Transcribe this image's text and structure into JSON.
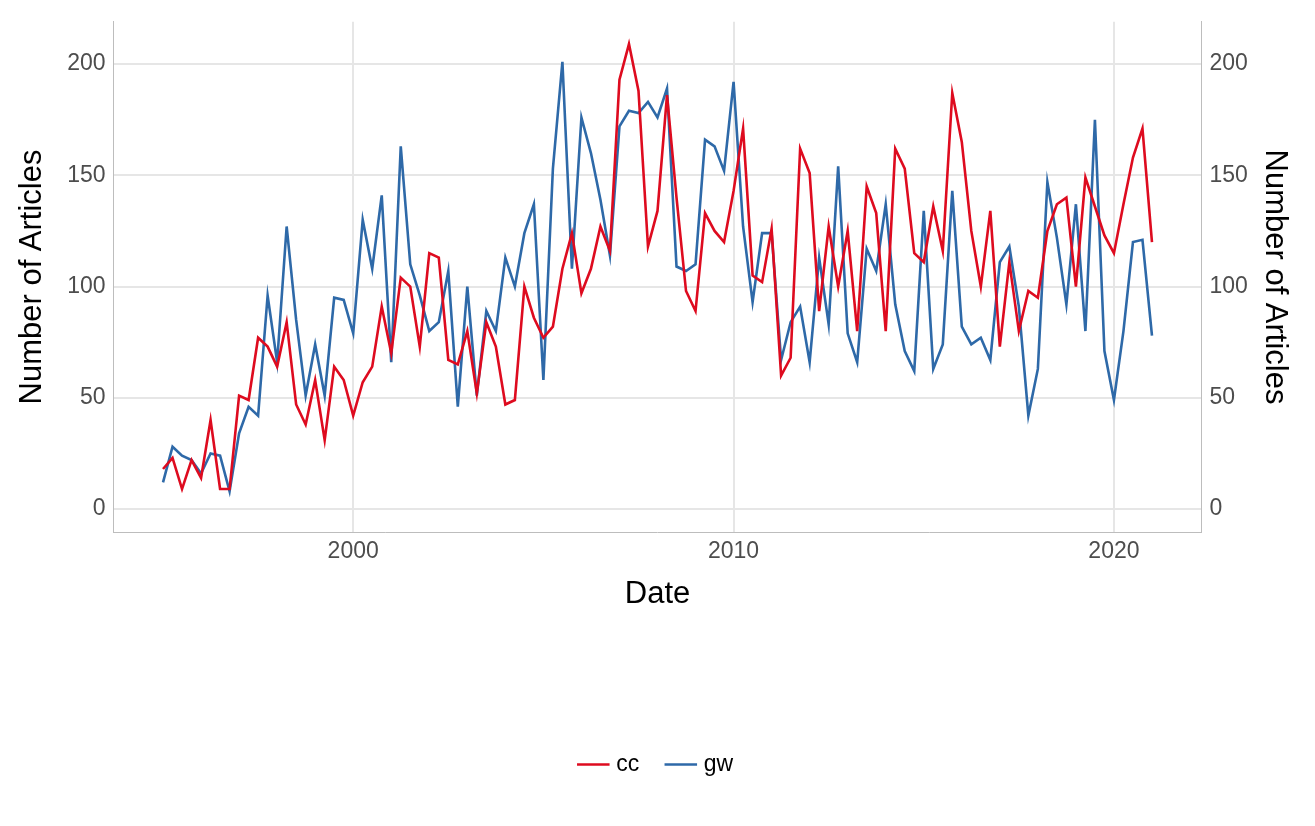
{
  "chart_data": {
    "type": "line",
    "x_label": "Date",
    "y_label": "Number of Articles",
    "y2_label": "Number of Articles",
    "x": [
      1995,
      1995.25,
      1995.5,
      1995.75,
      1996,
      1996.25,
      1996.5,
      1996.75,
      1997,
      1997.25,
      1997.5,
      1997.75,
      1998,
      1998.25,
      1998.5,
      1998.75,
      1999,
      1999.25,
      1999.5,
      1999.75,
      2000,
      2000.25,
      2000.5,
      2000.75,
      2001,
      2001.25,
      2001.5,
      2001.75,
      2002,
      2002.25,
      2002.5,
      2002.75,
      2003,
      2003.25,
      2003.5,
      2003.75,
      2004,
      2004.25,
      2004.5,
      2004.75,
      2005,
      2005.25,
      2005.5,
      2005.75,
      2006,
      2006.25,
      2006.5,
      2006.75,
      2007,
      2007.25,
      2007.5,
      2007.75,
      2008,
      2008.25,
      2008.5,
      2008.75,
      2009,
      2009.25,
      2009.5,
      2009.75,
      2010,
      2010.25,
      2010.5,
      2010.75,
      2011,
      2011.25,
      2011.5,
      2011.75,
      2012,
      2012.25,
      2012.5,
      2012.75,
      2013,
      2013.25,
      2013.5,
      2013.75,
      2014,
      2014.25,
      2014.5,
      2014.75,
      2015,
      2015.25,
      2015.5,
      2015.75,
      2016,
      2016.25,
      2016.5,
      2016.75,
      2017,
      2017.25,
      2017.5,
      2017.75,
      2018,
      2018.25,
      2018.5,
      2018.75,
      2019,
      2019.25,
      2019.5,
      2019.75,
      2020,
      2020.25,
      2020.5,
      2020.75,
      2021
    ],
    "series": [
      {
        "name": "cc",
        "color": "#DE0B1F",
        "axis": "y",
        "values": [
          18,
          23,
          9,
          22,
          14,
          40,
          9,
          9,
          51,
          49,
          77,
          73,
          64,
          84,
          47,
          38,
          58,
          31,
          64,
          58,
          42,
          57,
          64,
          91,
          70,
          104,
          100,
          73,
          115,
          113,
          67,
          65,
          80,
          52,
          84,
          73,
          47,
          49,
          100,
          86,
          77,
          82,
          108,
          124,
          97,
          108,
          127,
          116,
          193,
          209,
          188,
          118,
          134,
          186,
          140,
          98,
          89,
          133,
          125,
          120,
          143,
          171,
          105,
          102,
          126,
          60,
          68,
          162,
          151,
          89,
          127,
          100,
          125,
          80,
          145,
          133,
          80,
          162,
          153,
          115,
          111,
          136,
          116,
          187,
          165,
          125,
          100,
          134,
          73,
          111,
          80,
          98,
          95,
          125,
          137,
          140,
          100,
          149,
          136,
          123,
          115,
          137,
          158,
          171,
          120
        ]
      },
      {
        "name": "gw",
        "color": "#2E69A8",
        "axis": "y2",
        "values": [
          12,
          28,
          24,
          22,
          16,
          25,
          24,
          8,
          34,
          46,
          42,
          96,
          66,
          127,
          85,
          51,
          74,
          51,
          95,
          94,
          79,
          130,
          108,
          141,
          66,
          163,
          110,
          96,
          80,
          84,
          107,
          46,
          100,
          51,
          89,
          80,
          113,
          100,
          124,
          137,
          58,
          153,
          201,
          108,
          176,
          160,
          139,
          114,
          172,
          179,
          178,
          183,
          176,
          189,
          109,
          107,
          110,
          166,
          163,
          152,
          192,
          127,
          93,
          124,
          124,
          67,
          84,
          91,
          66,
          113,
          83,
          154,
          79,
          66,
          117,
          107,
          137,
          92,
          71,
          62,
          134,
          63,
          74,
          143,
          82,
          74,
          77,
          67,
          111,
          118,
          91,
          42,
          63,
          147,
          122,
          92,
          137,
          80,
          175,
          71,
          49,
          80,
          120,
          121,
          78
        ]
      }
    ],
    "xlim": [
      1993.7,
      2022.3
    ],
    "xticks": [
      2000,
      2010,
      2020
    ],
    "ylim": [
      -10.4,
      219
    ],
    "yticks": [
      0,
      50,
      100,
      150,
      200
    ],
    "y2lim": [
      -10.4,
      219
    ],
    "y2ticks": [
      0,
      50,
      100,
      150,
      200
    ],
    "grid": true,
    "legend": "bottom"
  }
}
